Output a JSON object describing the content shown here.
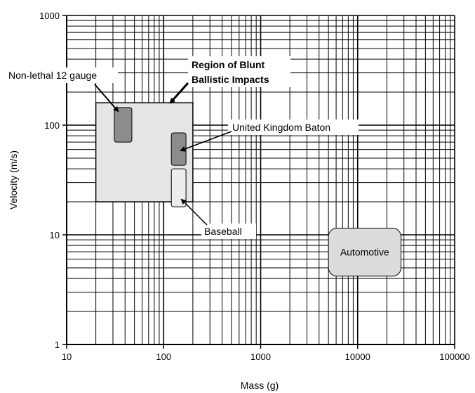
{
  "chart_data": {
    "type": "scatter",
    "title": "",
    "xlabel": "Mass (g)",
    "ylabel": "Velocity (m/s)",
    "xscale": "log",
    "yscale": "log",
    "xlim": [
      10,
      100000
    ],
    "ylim": [
      1,
      1000
    ],
    "grid": true,
    "xticks": [
      "10",
      "100",
      "1000",
      "10000",
      "100000"
    ],
    "yticks": [
      "1",
      "10",
      "100",
      "1000"
    ],
    "regions": [
      {
        "label": "Region of Blunt Ballistic Impacts",
        "mass": [
          20,
          200
        ],
        "velocity": [
          20,
          160
        ],
        "color": "#e6e6e6",
        "edge": "#000000"
      },
      {
        "label": "Non-lethal 12 gauge",
        "mass": [
          31,
          47
        ],
        "velocity": [
          70,
          145
        ],
        "color": "#8c8c8c",
        "edge": "#000000"
      },
      {
        "label": "United Kingdom Baton",
        "mass": [
          120,
          170
        ],
        "velocity": [
          43,
          85
        ],
        "color": "#8c8c8c",
        "edge": "#000000"
      },
      {
        "label": "Baseball",
        "mass": [
          120,
          170
        ],
        "velocity": [
          18,
          40
        ],
        "color": "#ededed",
        "edge": "#000000"
      },
      {
        "label": "Automotive",
        "mass": [
          5000,
          28000
        ],
        "velocity": [
          4.2,
          11.5
        ],
        "color": "#dcdcdc",
        "edge": "#000000"
      }
    ]
  }
}
